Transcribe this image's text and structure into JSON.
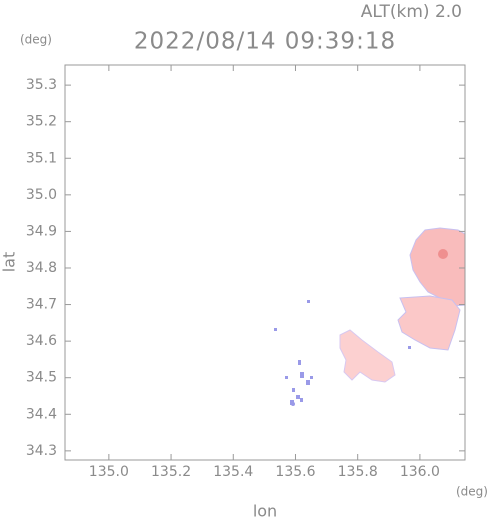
{
  "chart_data": {
    "type": "map",
    "title": "2022/08/14 09:39:18",
    "subtitle": "ALT(km) 2.0",
    "x_label": "lon",
    "y_label": "lat",
    "x_unit": "(deg)",
    "y_unit": "(deg)",
    "xlim": [
      134.859,
      136.145
    ],
    "ylim": [
      34.275,
      35.355
    ],
    "xticks": [
      {
        "value": 135,
        "label": "135.0"
      },
      135.2,
      135.4,
      135.6,
      135.8,
      {
        "value": 136,
        "label": "136.0"
      }
    ],
    "yticks": [
      34.3,
      34.4,
      34.5,
      34.6,
      34.7,
      34.8,
      34.9,
      {
        "value": 35,
        "label": "35.0"
      },
      35.1,
      35.2,
      35.3
    ]
  }
}
